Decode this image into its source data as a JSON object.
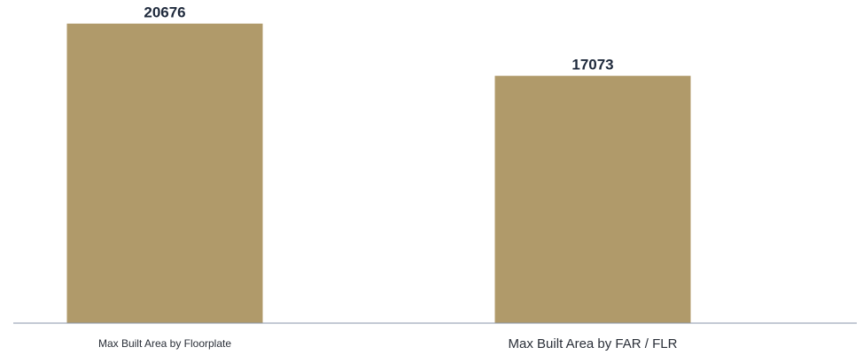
{
  "chart_data": {
    "type": "bar",
    "categories": [
      "Max Built Area by Floorplate",
      "Max Built Area by FAR / FLR"
    ],
    "values": [
      20676,
      17073
    ],
    "data_labels": [
      "20676",
      "17073"
    ],
    "title": "",
    "xlabel": "",
    "ylabel": "",
    "ylim": [
      0,
      22000
    ],
    "grid": false,
    "legend": "none",
    "colors": {
      "bar": "#b09a6a",
      "baseline": "#8a96a8",
      "label": "#1f2a3c"
    }
  }
}
